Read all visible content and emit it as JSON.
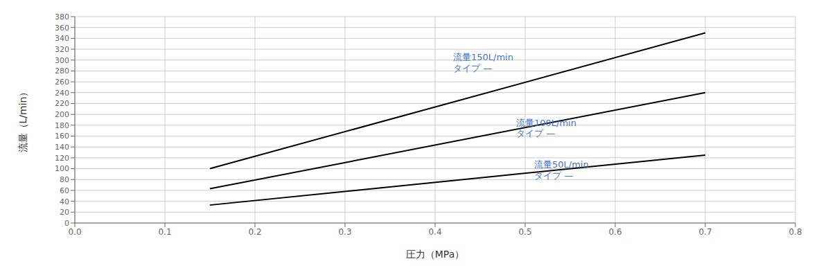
{
  "chart_data": {
    "type": "line",
    "x_label": "圧力（MPa）",
    "y_label": "流量（L/min）",
    "x": [
      0.15,
      0.7
    ],
    "series": [
      {
        "color": "#000000",
        "values": [
          100,
          350
        ]
      },
      {
        "color": "#000000",
        "values": [
          63,
          240
        ]
      },
      {
        "color": "#000000",
        "values": [
          33,
          125
        ]
      }
    ],
    "xlim": [
      0,
      0.8
    ],
    "ylim": [
      0,
      380
    ],
    "xticks": [
      {
        "value": 0,
        "label": "0.0"
      },
      0.1,
      0.2,
      0.3,
      0.4,
      0.5,
      0.6,
      0.7,
      0.8
    ],
    "yticks": [
      0,
      20,
      40,
      60,
      80,
      100,
      120,
      140,
      160,
      180,
      200,
      220,
      240,
      260,
      280,
      300,
      320,
      340,
      360,
      380
    ],
    "grid": true,
    "annotations": [
      {
        "text": "流量150L/min",
        "x": 0.42,
        "y": 305,
        "color": "#4472c4"
      },
      {
        "text": "タイプ —",
        "x": 0.42,
        "y": 285,
        "color": "#4472c4"
      },
      {
        "text": "流量100L/min",
        "x": 0.49,
        "y": 185,
        "color": "#4472c4"
      },
      {
        "text": "タイプ —",
        "x": 0.49,
        "y": 165,
        "color": "#4472c4"
      },
      {
        "text": "流量50L/min",
        "x": 0.51,
        "y": 108,
        "color": "#4472c4"
      },
      {
        "text": "タイプ —",
        "x": 0.51,
        "y": 88,
        "color": "#4472c4"
      }
    ]
  }
}
